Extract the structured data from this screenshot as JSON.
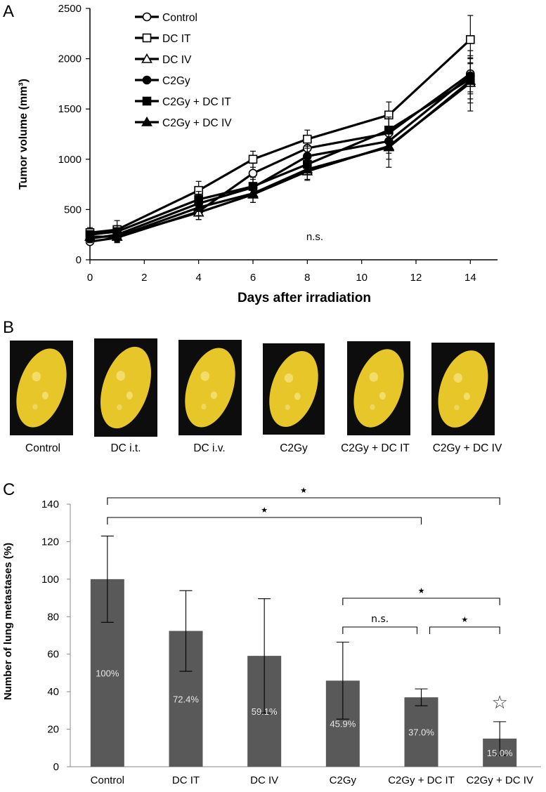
{
  "panel_labels": [
    "A",
    "B",
    "C"
  ],
  "chart_data": [
    {
      "type": "line",
      "panel": "A",
      "xlabel": "Days after irradiation",
      "ylabel": "Tumor volume (mm³)",
      "xlim": [
        0,
        15
      ],
      "ylim": [
        0,
        2500
      ],
      "xticks": [
        0,
        2,
        4,
        6,
        8,
        10,
        12,
        14
      ],
      "yticks": [
        0,
        500,
        1000,
        1500,
        2000,
        2500
      ],
      "x": [
        0,
        1,
        4,
        6,
        8,
        11,
        14
      ],
      "annotation": "n.s.",
      "series": [
        {
          "name": "Control",
          "marker": "open-circle",
          "values": [
            180,
            220,
            480,
            860,
            1110,
            1260,
            1850
          ],
          "errors": [
            30,
            50,
            80,
            100,
            110,
            150,
            180
          ]
        },
        {
          "name": "DC IT",
          "marker": "open-square",
          "values": [
            270,
            300,
            690,
            1000,
            1200,
            1440,
            2190
          ],
          "errors": [
            50,
            90,
            90,
            80,
            90,
            130,
            240
          ]
        },
        {
          "name": "DC IV",
          "marker": "open-triangle",
          "values": [
            230,
            230,
            470,
            650,
            880,
            1130,
            1760
          ],
          "errors": [
            40,
            50,
            70,
            80,
            90,
            130,
            200
          ]
        },
        {
          "name": "C2Gy",
          "marker": "filled-circle",
          "values": [
            210,
            250,
            560,
            720,
            1030,
            1180,
            1830
          ],
          "errors": [
            40,
            50,
            80,
            80,
            100,
            120,
            180
          ]
        },
        {
          "name": "C2Gy + DC IT",
          "marker": "filled-square",
          "values": [
            250,
            280,
            600,
            730,
            950,
            1290,
            1800
          ],
          "errors": [
            40,
            60,
            80,
            90,
            100,
            130,
            200
          ]
        },
        {
          "name": "C2Gy + DC IV",
          "marker": "filled-triangle",
          "values": [
            230,
            230,
            520,
            660,
            900,
            1120,
            1780
          ],
          "errors": [
            40,
            50,
            80,
            90,
            100,
            200,
            300
          ]
        }
      ]
    },
    {
      "type": "bar",
      "panel": "C",
      "ylabel": "Number of lung metastases (%)",
      "ylim": [
        0,
        140
      ],
      "yticks": [
        0,
        20,
        40,
        60,
        80,
        100,
        120,
        140
      ],
      "categories": [
        "Control",
        "DC IT",
        "DC IV",
        "C2Gy",
        "C2Gy + DC IT",
        "C2Gy + DC IV"
      ],
      "values": [
        100,
        72.4,
        59.1,
        45.9,
        37.0,
        15.0
      ],
      "errors": [
        23,
        21.5,
        30.5,
        20.5,
        4.5,
        9
      ],
      "data_labels": [
        "100%",
        "72.4%",
        "59.1%",
        "45.9%",
        "37.0%",
        "15.0%"
      ],
      "bar_color": "#595959",
      "significance": [
        {
          "from": 0,
          "to": 5,
          "label": "★"
        },
        {
          "from": 0,
          "to": 4,
          "label": "★"
        },
        {
          "from": 3,
          "to": 5,
          "label": "★"
        },
        {
          "from": 3,
          "to": 4,
          "label": "n.s."
        },
        {
          "from": 4,
          "to": 5,
          "label": "★"
        }
      ],
      "marker_above": {
        "index": 5,
        "symbol": "☆"
      }
    }
  ],
  "photos": {
    "captions": [
      "Control",
      "DC i.t.",
      "DC i.v.",
      "C2Gy",
      "C2Gy + DC IT",
      "C2Gy + DC IV"
    ],
    "lung_color": "#e7c62a",
    "background_color": "#0d0d0d"
  }
}
